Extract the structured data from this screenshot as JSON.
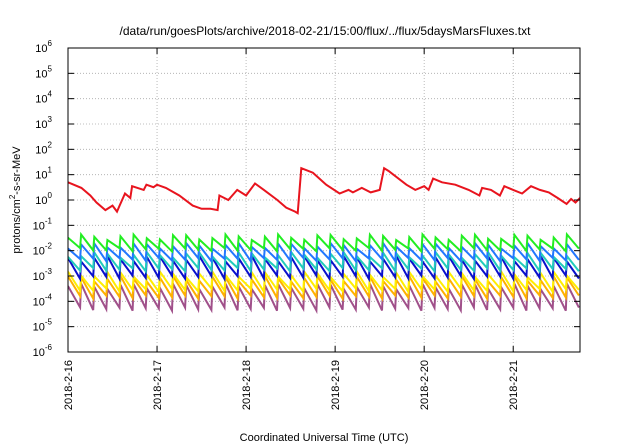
{
  "chart_data": {
    "type": "line",
    "title": "/data/run/goesPlots/archive/2018-02-21/15:00/flux/../flux/5daysMarsFluxes.txt",
    "xlabel": "Coordinated Universal Time (UTC)",
    "ylabel": {
      "base": "protons/cm",
      "sup": "2",
      "rest": "-s-sr-MeV"
    },
    "x_ticks": [
      "2018-2-16",
      "2018-2-17",
      "2018-2-18",
      "2018-2-19",
      "2018-2-20",
      "2018-2-21"
    ],
    "xlim_days": [
      0,
      5.75
    ],
    "y_scale": "log",
    "ylim_exp": [
      -6,
      6
    ],
    "y_ticks": [
      {
        "base": "10",
        "exp": "-6"
      },
      {
        "base": "10",
        "exp": "-5"
      },
      {
        "base": "10",
        "exp": "-4"
      },
      {
        "base": "10",
        "exp": "-3"
      },
      {
        "base": "10",
        "exp": "-2"
      },
      {
        "base": "10",
        "exp": "-1"
      },
      {
        "base": "10",
        "exp": "0"
      },
      {
        "base": "10",
        "exp": "1"
      },
      {
        "base": "10",
        "exp": "2"
      },
      {
        "base": "10",
        "exp": "3"
      },
      {
        "base": "10",
        "exp": "4"
      },
      {
        "base": "10",
        "exp": "5"
      },
      {
        "base": "10",
        "exp": "6"
      }
    ],
    "grid": true,
    "series": [
      {
        "color": "#e8141e",
        "x": [
          0.0,
          0.15,
          0.25,
          0.32,
          0.42,
          0.5,
          0.55,
          0.58,
          0.64,
          0.7,
          0.72,
          0.85,
          0.88,
          0.96,
          1.0,
          1.1,
          1.25,
          1.4,
          1.5,
          1.6,
          1.68,
          1.7,
          1.8,
          1.9,
          2.0,
          2.1,
          2.2,
          2.35,
          2.45,
          2.55,
          2.58,
          2.62,
          2.75,
          2.9,
          3.05,
          3.15,
          3.2,
          3.3,
          3.4,
          3.5,
          3.55,
          3.6,
          3.8,
          3.9,
          4.0,
          4.05,
          4.1,
          4.2,
          4.35,
          4.5,
          4.62,
          4.65,
          4.75,
          4.85,
          4.9,
          5.0,
          5.1,
          5.2,
          5.3,
          5.4,
          5.5,
          5.6,
          5.65,
          5.7,
          5.75
        ],
        "y": [
          5,
          3,
          1.5,
          0.8,
          0.4,
          0.6,
          0.35,
          0.6,
          1.8,
          1.2,
          3.5,
          2.5,
          4,
          3.2,
          4,
          3,
          1.5,
          0.6,
          0.45,
          0.45,
          0.4,
          1.5,
          1,
          2.5,
          1.5,
          4.5,
          2.5,
          1,
          0.5,
          0.35,
          0.3,
          18,
          12,
          4,
          1.8,
          2.5,
          2,
          3,
          2,
          2.5,
          18,
          14,
          4,
          2.5,
          3.5,
          2.5,
          7,
          5,
          4,
          2.5,
          1.5,
          3,
          2.5,
          1.5,
          3.5,
          2.5,
          1.8,
          3.5,
          2.5,
          2,
          1.2,
          0.7,
          1.1,
          0.8,
          1.2
        ]
      }
    ],
    "sawtooth_series": [
      {
        "color": "#22ee22",
        "low": 0.011,
        "high": 0.035,
        "cycles": 39
      },
      {
        "color": "#2277ff",
        "low": 0.0045,
        "high": 0.016,
        "cycles": 39
      },
      {
        "color": "#22ccbb",
        "low": 0.0018,
        "high": 0.007,
        "cycles": 39
      },
      {
        "color": "#0a10cc",
        "low": 0.0009,
        "high": 0.005,
        "cycles": 39
      },
      {
        "color": "#ffee00",
        "low": 0.00028,
        "high": 0.0012,
        "cycles": 39
      },
      {
        "color": "#ffb000",
        "low": 0.00015,
        "high": 0.0008,
        "cycles": 39
      },
      {
        "color": "#a0508a",
        "low": 5e-05,
        "high": 0.0004,
        "cycles": 39
      }
    ]
  }
}
